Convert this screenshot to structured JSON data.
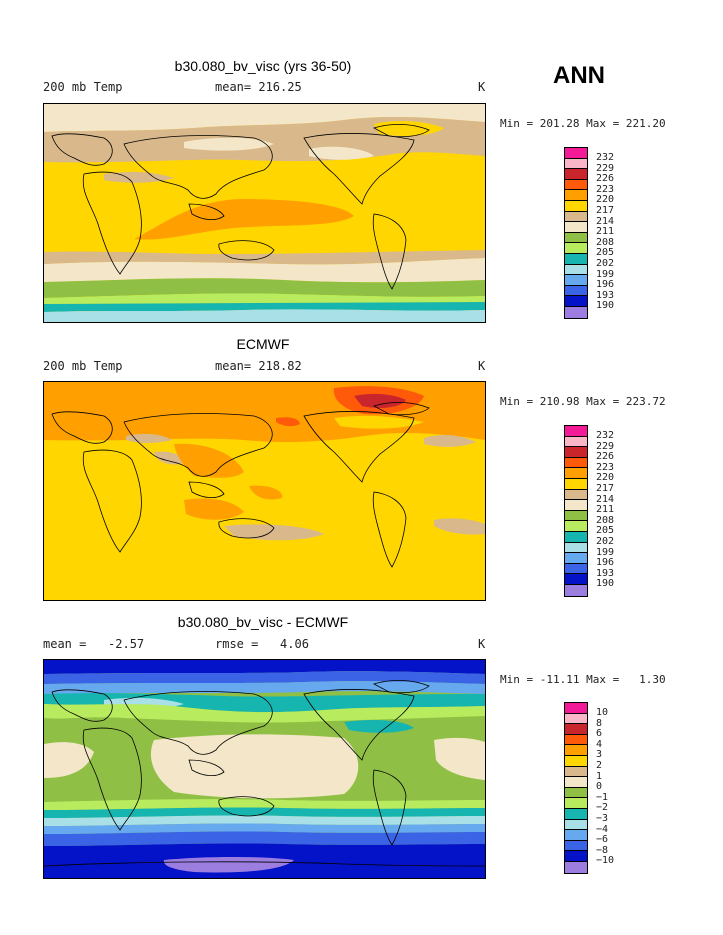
{
  "season": "ANN",
  "colors": {
    "c10": "#f21a97",
    "c9": "#f8b6c8",
    "c8": "#c8262c",
    "c7": "#ff5a0a",
    "c6": "#ffa000",
    "c5": "#ffd600",
    "c4": "#d9b98b",
    "c3": "#f4e7c9",
    "c2": "#8fc045",
    "c1": "#b8ec5e",
    "c0": "#17b5b0",
    "cm1": "#a9e0e8",
    "cm2": "#66a9ee",
    "cm3": "#3a63e6",
    "cm4": "#0412c8",
    "cm5": "#9c7ee0"
  },
  "colorbar_order": [
    "c10",
    "c9",
    "c8",
    "c7",
    "c6",
    "c5",
    "c4",
    "c3",
    "c2",
    "c1",
    "c0",
    "cm1",
    "cm2",
    "cm3",
    "cm4",
    "cm5"
  ],
  "panels": [
    {
      "title": "b30.080_bv_visc (yrs 36-50)",
      "left_label": "200 mb Temp",
      "center_label": "mean= 216.25",
      "unit": "K",
      "min_max": "Min = 201.28 Max = 221.20",
      "levels": [
        "232",
        "229",
        "226",
        "223",
        "220",
        "217",
        "214",
        "211",
        "208",
        "205",
        "202",
        "199",
        "196",
        "193",
        "190"
      ]
    },
    {
      "title": "ECMWF",
      "left_label": "200 mb Temp",
      "center_label": "mean= 218.82",
      "unit": "K",
      "min_max": "Min = 210.98 Max = 223.72",
      "levels": [
        "232",
        "229",
        "226",
        "223",
        "220",
        "217",
        "214",
        "211",
        "208",
        "205",
        "202",
        "199",
        "196",
        "193",
        "190"
      ]
    },
    {
      "title": "b30.080_bv_visc - ECMWF",
      "left_label": "mean =   -2.57",
      "center_label": "rmse =   4.06",
      "unit": "K",
      "min_max": "Min = -11.11 Max =   1.30",
      "levels": [
        "10",
        "8",
        "6",
        "4",
        "3",
        "2",
        "1",
        "0",
        "−1",
        "−2",
        "−3",
        "−4",
        "−6",
        "−8",
        "−10"
      ]
    }
  ]
}
